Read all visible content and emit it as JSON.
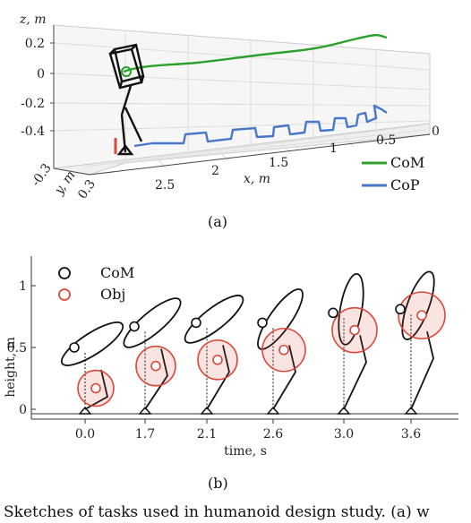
{
  "figure_a": {
    "z_axis_label": "z, m",
    "z_ticks": [
      "0.2",
      "0",
      "-0.2",
      "-0.4"
    ],
    "x_axis_label": "x, m",
    "x_ticks": [
      "0",
      "0.5",
      "1",
      "1.5",
      "2",
      "2.5"
    ],
    "y_axis_label": "y, m",
    "y_ticks": [
      "-0.3",
      "0.3"
    ],
    "legend": [
      {
        "label": "CoM",
        "color": "#2ca02c"
      },
      {
        "label": "CoP",
        "color": "#4a78c8"
      }
    ],
    "panel_label": "(a)"
  },
  "figure_b": {
    "ylabel": "height, m",
    "xlabel": "time, s",
    "y_ticks": [
      "0",
      "0.5",
      "1"
    ],
    "x_ticks": [
      "0.0",
      "1.7",
      "2.1",
      "2.6",
      "3.0",
      "3.6"
    ],
    "legend": [
      {
        "label": "CoM",
        "color": "#111111"
      },
      {
        "label": "Obj",
        "color": "#d84a3a"
      }
    ],
    "panel_label": "(b)"
  },
  "chart_data": {
    "type": "scatter",
    "xlabel": "time, s",
    "ylabel": "height, m",
    "x": [
      0.0,
      1.7,
      2.1,
      2.6,
      3.0,
      3.6
    ],
    "series": [
      {
        "name": "CoM",
        "values": [
          0.5,
          0.67,
          0.7,
          0.7,
          0.78,
          0.81
        ]
      },
      {
        "name": "Obj",
        "values": [
          0.17,
          0.35,
          0.4,
          0.48,
          0.64,
          0.76
        ]
      }
    ],
    "ylim": [
      0,
      1.2
    ],
    "grid": false,
    "legend": "top-left"
  },
  "caption": "Sketches of tasks used in humanoid design study. (a) w"
}
